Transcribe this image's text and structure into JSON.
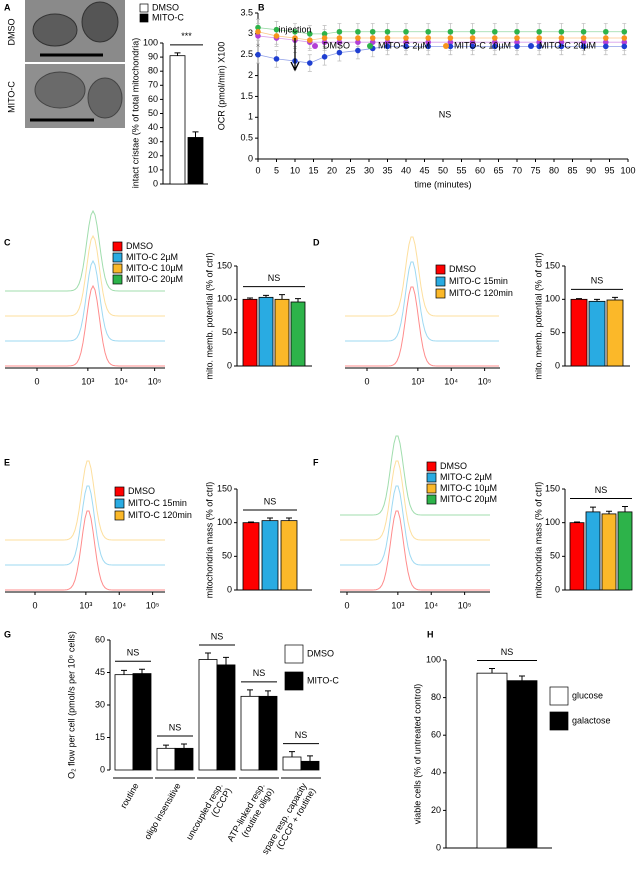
{
  "chart_data": [
    {
      "panel": "A",
      "type": "bar",
      "image_labels": [
        "DMSO",
        "MITO-C"
      ],
      "y_label": "intact cristae (% of total mitochondria)",
      "categories": [
        null
      ],
      "series": [
        {
          "name": "DMSO",
          "color": "#ffffff",
          "values": [
            91
          ],
          "errors": [
            2
          ]
        },
        {
          "name": "MITO-C",
          "color": "#000000",
          "values": [
            33
          ],
          "errors": [
            4
          ]
        }
      ],
      "ylim": [
        0,
        100
      ],
      "yticks": [
        0,
        10,
        20,
        30,
        40,
        50,
        60,
        70,
        80,
        90,
        100
      ],
      "annotations": [
        "***"
      ]
    },
    {
      "panel": "B",
      "type": "line",
      "y_label": "OCR (pmol/min) X100",
      "x_label": "time (minutes)",
      "x": [
        0,
        5,
        10,
        14,
        18,
        22,
        27,
        31,
        35,
        40,
        46,
        52,
        58,
        64,
        70,
        76,
        82,
        88,
        94,
        99
      ],
      "series": [
        {
          "name": "DMSO",
          "color": "#b23fd6",
          "values": [
            2.95,
            2.9,
            2.85,
            2.8,
            2.8,
            2.8,
            2.8,
            2.8,
            2.8,
            2.8,
            2.8,
            2.8,
            2.8,
            2.8,
            2.8,
            2.8,
            2.8,
            2.8,
            2.8,
            2.8
          ],
          "errors": [
            0.2,
            0.2,
            0.2,
            0.2,
            0.2,
            0.2,
            0.2,
            0.2,
            0.2,
            0.2,
            0.2,
            0.2,
            0.2,
            0.2,
            0.2,
            0.2,
            0.2,
            0.2,
            0.2,
            0.2
          ]
        },
        {
          "name": "MITO-C 2µM",
          "color": "#2db34a",
          "values": [
            3.15,
            3.1,
            3.05,
            3.0,
            3.0,
            3.05,
            3.05,
            3.05,
            3.05,
            3.05,
            3.05,
            3.05,
            3.05,
            3.05,
            3.05,
            3.05,
            3.05,
            3.05,
            3.05,
            3.05
          ],
          "errors": [
            0.2,
            0.2,
            0.2,
            0.2,
            0.2,
            0.2,
            0.2,
            0.2,
            0.2,
            0.2,
            0.2,
            0.2,
            0.2,
            0.2,
            0.2,
            0.2,
            0.2,
            0.2,
            0.2,
            0.2
          ]
        },
        {
          "name": "MITO-C 10µM",
          "color": "#f7941d",
          "values": [
            3.05,
            2.95,
            2.9,
            2.85,
            2.9,
            2.9,
            2.9,
            2.9,
            2.9,
            2.9,
            2.9,
            2.9,
            2.9,
            2.9,
            2.9,
            2.9,
            2.9,
            2.9,
            2.9,
            2.9
          ],
          "errors": [
            0.2,
            0.2,
            0.2,
            0.2,
            0.2,
            0.2,
            0.2,
            0.2,
            0.2,
            0.2,
            0.2,
            0.2,
            0.2,
            0.2,
            0.2,
            0.2,
            0.2,
            0.2,
            0.2,
            0.2
          ]
        },
        {
          "name": "MITO-C 20µM",
          "color": "#1f3fd1",
          "values": [
            2.5,
            2.4,
            2.35,
            2.3,
            2.45,
            2.55,
            2.6,
            2.65,
            2.7,
            2.7,
            2.7,
            2.7,
            2.7,
            2.7,
            2.7,
            2.7,
            2.7,
            2.7,
            2.7,
            2.7
          ],
          "errors": [
            0.2,
            0.2,
            0.2,
            0.2,
            0.2,
            0.2,
            0.2,
            0.2,
            0.2,
            0.2,
            0.2,
            0.2,
            0.2,
            0.2,
            0.2,
            0.2,
            0.2,
            0.2,
            0.2,
            0.2
          ]
        }
      ],
      "xlim": [
        0,
        100
      ],
      "xticks": [
        0,
        5,
        10,
        15,
        20,
        25,
        30,
        35,
        40,
        45,
        50,
        55,
        60,
        65,
        70,
        75,
        80,
        85,
        90,
        95,
        100
      ],
      "ylim": [
        0,
        3.5
      ],
      "yticks": [
        0,
        0.5,
        1,
        1.5,
        2,
        2.5,
        3,
        3.5
      ],
      "injection_x": 10,
      "annotations": [
        "injection",
        "NS"
      ]
    },
    {
      "panel": "C",
      "type": "bar",
      "y_label": "mito. memb. potential (% of ctrl)",
      "categories": [
        null
      ],
      "series": [
        {
          "name": "DMSO",
          "color": "#ff0000",
          "values": [
            100
          ],
          "errors": [
            2
          ]
        },
        {
          "name": "MITO-C 2µM",
          "color": "#29abe2",
          "values": [
            103
          ],
          "errors": [
            3
          ]
        },
        {
          "name": "MITO-C 10µM",
          "color": "#fbb829",
          "values": [
            100
          ],
          "errors": [
            7
          ]
        },
        {
          "name": "MITO-C 20µM",
          "color": "#2db34a",
          "values": [
            96
          ],
          "errors": [
            5
          ]
        }
      ],
      "ylim": [
        0,
        150
      ],
      "yticks": [
        0,
        50,
        100,
        150
      ],
      "annotations": [
        "NS"
      ],
      "histogram_xticks": [
        0,
        {
          "value": 1000,
          "label": "10³"
        },
        {
          "value": 10000,
          "label": "10⁴"
        },
        {
          "value": 100000,
          "label": "10⁵"
        }
      ]
    },
    {
      "panel": "D",
      "type": "bar",
      "y_label": "mito. memb. potential (% of ctrl)",
      "categories": [
        null
      ],
      "series": [
        {
          "name": "DMSO",
          "color": "#ff0000",
          "values": [
            100
          ],
          "errors": [
            1
          ]
        },
        {
          "name": "MITO-C 15min",
          "color": "#29abe2",
          "values": [
            97
          ],
          "errors": [
            3
          ]
        },
        {
          "name": "MITO-C 120min",
          "color": "#fbb829",
          "values": [
            99
          ],
          "errors": [
            4
          ]
        }
      ],
      "ylim": [
        0,
        150
      ],
      "yticks": [
        0,
        50,
        100,
        150
      ],
      "annotations": [
        "NS"
      ],
      "histogram_xticks": [
        0,
        {
          "value": 1000,
          "label": "10³"
        },
        {
          "value": 10000,
          "label": "10⁴"
        },
        {
          "value": 100000,
          "label": "10⁵"
        }
      ]
    },
    {
      "panel": "E",
      "type": "bar",
      "y_label": "mitochondria mass (% of ctrl)",
      "categories": [
        null
      ],
      "series": [
        {
          "name": "DMSO",
          "color": "#ff0000",
          "values": [
            100
          ],
          "errors": [
            1
          ]
        },
        {
          "name": "MITO-C 15min",
          "color": "#29abe2",
          "values": [
            103
          ],
          "errors": [
            4
          ]
        },
        {
          "name": "MITO-C 120min",
          "color": "#fbb829",
          "values": [
            103
          ],
          "errors": [
            4
          ]
        }
      ],
      "ylim": [
        0,
        150
      ],
      "yticks": [
        0,
        50,
        100,
        150
      ],
      "annotations": [
        "NS"
      ],
      "histogram_xticks": [
        0,
        {
          "value": 1000,
          "label": "10³"
        },
        {
          "value": 10000,
          "label": "10⁴"
        },
        {
          "value": 100000,
          "label": "10⁵"
        }
      ]
    },
    {
      "panel": "F",
      "type": "bar",
      "y_label": "mitochondria mass (% of ctrl)",
      "categories": [
        null
      ],
      "series": [
        {
          "name": "DMSO",
          "color": "#ff0000",
          "values": [
            100
          ],
          "errors": [
            1
          ]
        },
        {
          "name": "MITO-C 2µM",
          "color": "#29abe2",
          "values": [
            116
          ],
          "errors": [
            7
          ]
        },
        {
          "name": "MITO-C 10µM",
          "color": "#fbb829",
          "values": [
            113
          ],
          "errors": [
            4
          ]
        },
        {
          "name": "MITO-C 20µM",
          "color": "#2db34a",
          "values": [
            116
          ],
          "errors": [
            8
          ]
        }
      ],
      "ylim": [
        0,
        150
      ],
      "yticks": [
        0,
        50,
        100,
        150
      ],
      "annotations": [
        "NS"
      ],
      "histogram_xticks": [
        0,
        {
          "value": 1000,
          "label": "10³"
        },
        {
          "value": 10000,
          "label": "10⁴"
        },
        {
          "value": 100000,
          "label": "10⁵"
        }
      ]
    },
    {
      "panel": "G",
      "type": "bar",
      "y_label": "O₂ flow per cell (pmol/s per 10⁶ cells)",
      "categories": [
        [
          "routine"
        ],
        [
          "oligo insensitive"
        ],
        [
          "uncoupled resp.",
          "(CCCP)"
        ],
        [
          "ATP-linked resp.",
          "(routine oligo)"
        ],
        [
          "spare resp. capacity",
          "(CCCP + routine)"
        ]
      ],
      "series": [
        {
          "name": "DMSO",
          "color": "#ffffff",
          "values": [
            44,
            10,
            51,
            34,
            6
          ],
          "errors": [
            2,
            1.5,
            3,
            3,
            2.5
          ]
        },
        {
          "name": "MITO-C",
          "color": "#000000",
          "values": [
            44.5,
            10,
            48.5,
            34,
            4
          ],
          "errors": [
            2,
            2,
            3.5,
            2.5,
            2.5
          ]
        }
      ],
      "ylim": [
        0,
        60
      ],
      "yticks": [
        0,
        15,
        30,
        45,
        60
      ],
      "annotations": [
        "NS",
        "NS",
        "NS",
        "NS",
        "NS"
      ]
    },
    {
      "panel": "H",
      "type": "bar",
      "y_label": "viable cells (% of untreated control)",
      "categories": [
        null
      ],
      "series": [
        {
          "name": "glucose",
          "color": "#ffffff",
          "values": [
            93
          ],
          "errors": [
            2.5
          ]
        },
        {
          "name": "galactose",
          "color": "#000000",
          "values": [
            89
          ],
          "errors": [
            2.5
          ]
        }
      ],
      "ylim": [
        0,
        100
      ],
      "yticks": [
        0,
        20,
        40,
        60,
        80,
        100
      ],
      "annotations": [
        "NS"
      ]
    }
  ]
}
